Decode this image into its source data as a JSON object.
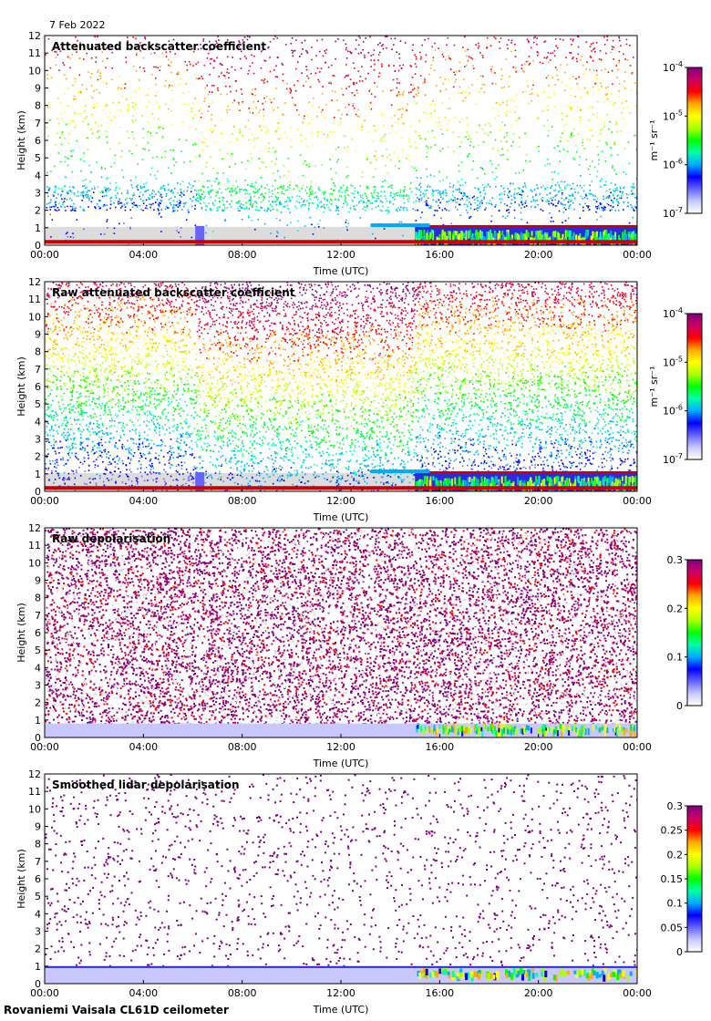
{
  "date_label": "7 Feb 2022",
  "footer_label": "Rovaniemi Vaisala CL61D ceilometer",
  "chart_data": [
    {
      "type": "heatmap",
      "title": "Attenuated backscatter coefficient",
      "xlabel": "Time (UTC)",
      "ylabel": "Height (km)",
      "x_ticks": [
        "00:00",
        "04:00",
        "08:00",
        "12:00",
        "16:00",
        "20:00",
        "00:00"
      ],
      "y_ticks": [
        "0",
        "1",
        "2",
        "3",
        "4",
        "5",
        "6",
        "7",
        "8",
        "9",
        "10",
        "11",
        "12"
      ],
      "ylim": [
        0,
        12
      ],
      "colorbar": {
        "scale": "log",
        "min": "10⁻⁷",
        "ticks": [
          {
            "base": "10",
            "exp": "-4"
          },
          {
            "base": "10",
            "exp": "-5"
          },
          {
            "base": "10",
            "exp": "-6"
          },
          {
            "base": "10",
            "exp": "-7"
          }
        ],
        "unit": "m⁻¹ sr⁻¹"
      }
    },
    {
      "type": "heatmap",
      "title": "Raw attenuated backscatter coefficient",
      "xlabel": "Time (UTC)",
      "ylabel": "Height (km)",
      "x_ticks": [
        "00:00",
        "04:00",
        "08:00",
        "12:00",
        "16:00",
        "20:00",
        "00:00"
      ],
      "y_ticks": [
        "0",
        "1",
        "2",
        "3",
        "4",
        "5",
        "6",
        "7",
        "8",
        "9",
        "10",
        "11",
        "12"
      ],
      "ylim": [
        0,
        12
      ],
      "colorbar": {
        "scale": "log",
        "ticks": [
          {
            "base": "10",
            "exp": "-4"
          },
          {
            "base": "10",
            "exp": "-5"
          },
          {
            "base": "10",
            "exp": "-6"
          },
          {
            "base": "10",
            "exp": "-7"
          }
        ],
        "unit": "m⁻¹ sr⁻¹"
      }
    },
    {
      "type": "heatmap",
      "title": "Raw depolarisation",
      "xlabel": "Time (UTC)",
      "ylabel": "Height (km)",
      "x_ticks": [
        "00:00",
        "04:00",
        "08:00",
        "12:00",
        "16:00",
        "20:00",
        "00:00"
      ],
      "y_ticks": [
        "0",
        "1",
        "2",
        "3",
        "4",
        "5",
        "6",
        "7",
        "8",
        "9",
        "10",
        "11",
        "12"
      ],
      "ylim": [
        0,
        12
      ],
      "colorbar": {
        "scale": "linear",
        "ticks": [
          "0.3",
          "0.2",
          "0.1",
          "0"
        ],
        "unit": ""
      }
    },
    {
      "type": "heatmap",
      "title": "Smoothed lidar depolarisation",
      "xlabel": "Time (UTC)",
      "ylabel": "Height (km)",
      "x_ticks": [
        "00:00",
        "04:00",
        "08:00",
        "12:00",
        "16:00",
        "20:00",
        "00:00"
      ],
      "y_ticks": [
        "0",
        "1",
        "2",
        "3",
        "4",
        "5",
        "6",
        "7",
        "8",
        "9",
        "10",
        "11",
        "12"
      ],
      "ylim": [
        0,
        12
      ],
      "colorbar": {
        "scale": "linear",
        "ticks": [
          "0.3",
          "0.25",
          "0.2",
          "0.15",
          "0.1",
          "0.05",
          "0"
        ],
        "unit": ""
      }
    }
  ]
}
